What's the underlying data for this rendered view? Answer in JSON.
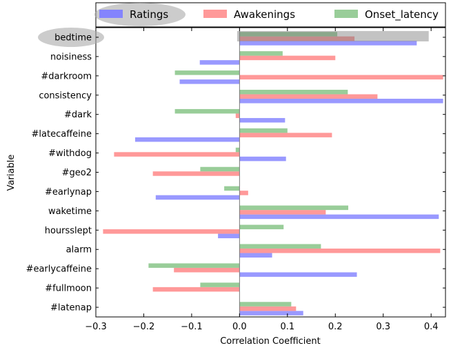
{
  "chart_data": {
    "type": "bar",
    "orientation": "horizontal",
    "categories": [
      "bedtime",
      "noisiness",
      "#darkroom",
      "consistency",
      "#dark",
      "#latecaffeine",
      "#withdog",
      "#geo2",
      "#earlynap",
      "waketime",
      "hoursslept",
      "alarm",
      "#earlycaffeine",
      "#fullmoon",
      "#latenap"
    ],
    "series": [
      {
        "name": "Ratings",
        "color": "#8080ff",
        "values": [
          0.37,
          -0.083,
          -0.125,
          0.425,
          0.095,
          -0.218,
          0.097,
          0.0,
          -0.175,
          0.416,
          -0.045,
          0.068,
          0.245,
          0.0,
          0.133
        ]
      },
      {
        "name": "Awakenings",
        "color": "#ff8080",
        "values": [
          0.24,
          0.2,
          0.425,
          0.288,
          -0.008,
          0.193,
          -0.262,
          -0.181,
          0.018,
          0.18,
          -0.285,
          0.419,
          -0.137,
          -0.181,
          0.118
        ]
      },
      {
        "name": "Onset_latency",
        "color": "#80c080",
        "values": [
          0.204,
          0.09,
          -0.135,
          0.226,
          -0.135,
          0.1,
          -0.008,
          -0.082,
          -0.032,
          0.227,
          0.092,
          0.17,
          -0.19,
          -0.082,
          0.108
        ]
      }
    ],
    "xlabel": "Correlation Coefficient",
    "ylabel": "Variable",
    "xlim": [
      -0.3,
      0.43
    ],
    "xticks": [
      "−0.3",
      "−0.2",
      "−0.1",
      "0.0",
      "0.1",
      "0.2",
      "0.3",
      "0.4"
    ],
    "xtick_values": [
      -0.3,
      -0.2,
      -0.1,
      0.0,
      0.1,
      0.2,
      0.3,
      0.4
    ],
    "legend_position": "top",
    "highlight": {
      "category": "bedtime",
      "label_ellipse": true,
      "bar_box": true
    },
    "grid": false
  }
}
